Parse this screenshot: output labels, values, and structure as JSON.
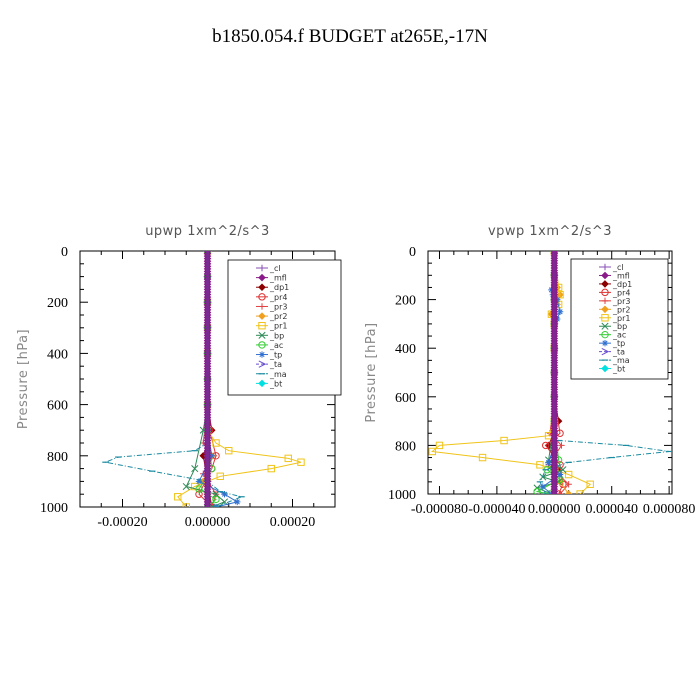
{
  "title": "b1850.054.f  BUDGET at265E,-17N",
  "chart_data": [
    {
      "type": "line",
      "title": "upwp   1xm^2/s^3",
      "ylabel": "Pressure [hPa]",
      "xlim": [
        -0.0003,
        0.0003
      ],
      "ylim": [
        1000,
        0
      ],
      "xticks": [
        -0.0002,
        0.0,
        0.0002
      ],
      "xtick_labels": [
        "-0.00020",
        "0.00000",
        "0.00020"
      ],
      "yticks": [
        0,
        200,
        400,
        600,
        800,
        1000
      ],
      "ytick_labels": [
        "0",
        "200",
        "400",
        "600",
        "800",
        "1000"
      ],
      "legend": "top-right",
      "series": [
        {
          "name": "_cl",
          "color": "#8a4fb5",
          "marker": "plus",
          "x": [
            0,
            0,
            0,
            0,
            0,
            0,
            0,
            0,
            0,
            0,
            0
          ],
          "y": [
            0,
            100,
            200,
            300,
            400,
            500,
            600,
            700,
            800,
            900,
            1000
          ]
        },
        {
          "name": "_mfl",
          "color": "#8b1a8b",
          "marker": "diamond",
          "x": [
            0,
            0,
            0,
            0,
            0,
            0,
            0,
            0,
            0,
            0,
            0
          ],
          "y": [
            0,
            100,
            200,
            300,
            400,
            500,
            600,
            700,
            800,
            900,
            1000
          ]
        },
        {
          "name": "_dp1",
          "color": "#8b0000",
          "marker": "diamond",
          "x": [
            0,
            0,
            0,
            0,
            0,
            0,
            0,
            1e-05,
            -1e-05,
            0,
            1e-05
          ],
          "y": [
            0,
            100,
            200,
            300,
            400,
            500,
            600,
            700,
            800,
            900,
            1000
          ]
        },
        {
          "name": "_pr4",
          "color": "#e03030",
          "marker": "circle",
          "x": [
            0,
            0,
            0,
            0,
            0,
            0,
            0,
            5e-06,
            2e-05,
            1e-05,
            -2e-05,
            1e-05
          ],
          "y": [
            0,
            100,
            200,
            300,
            400,
            500,
            600,
            700,
            800,
            850,
            950,
            1000
          ]
        },
        {
          "name": "_pr3",
          "color": "#e04040",
          "marker": "plus",
          "x": [
            0,
            0,
            0,
            0,
            0,
            0,
            0,
            -1e-05,
            1.5e-05,
            -1e-05,
            2e-05,
            1e-05
          ],
          "y": [
            0,
            100,
            200,
            300,
            400,
            500,
            600,
            750,
            800,
            870,
            950,
            1000
          ]
        },
        {
          "name": "_pr2",
          "color": "#f0a020",
          "marker": "diamond",
          "x": [
            0,
            0,
            0,
            0,
            0,
            0,
            0,
            0,
            1e-05,
            -1e-05,
            0,
            0
          ],
          "y": [
            0,
            100,
            200,
            300,
            400,
            500,
            600,
            700,
            800,
            900,
            950,
            1000
          ]
        },
        {
          "name": "_pr1",
          "color": "#f0c419",
          "marker": "square",
          "x": [
            0,
            0,
            0,
            0,
            0,
            0,
            2e-05,
            5e-05,
            0.00019,
            0.00022,
            0.00015,
            3e-05,
            -3e-05,
            -7e-05,
            -5e-05
          ],
          "y": [
            0,
            200,
            300,
            400,
            600,
            700,
            750,
            780,
            810,
            825,
            850,
            880,
            920,
            960,
            1000
          ]
        },
        {
          "name": "_bp",
          "color": "#2e8b57",
          "marker": "cross",
          "x": [
            0,
            0,
            0,
            0,
            0,
            0,
            0,
            -1e-05,
            -3e-05,
            -5e-05,
            2e-05,
            4e-05,
            1e-05
          ],
          "y": [
            0,
            100,
            200,
            300,
            400,
            500,
            600,
            700,
            850,
            920,
            950,
            980,
            1000
          ]
        },
        {
          "name": "_ac",
          "color": "#32cd32",
          "marker": "circle",
          "x": [
            0,
            0,
            0,
            0,
            0,
            0,
            0,
            0,
            1e-05,
            -2e-05,
            2e-05,
            0
          ],
          "y": [
            0,
            100,
            200,
            300,
            400,
            500,
            600,
            700,
            850,
            930,
            970,
            1000
          ]
        },
        {
          "name": "_tp",
          "color": "#3070d0",
          "marker": "star",
          "x": [
            0,
            0,
            0,
            0,
            0,
            0,
            0,
            0,
            1e-05,
            -2e-05,
            4e-05,
            7e-05,
            2e-05
          ],
          "y": [
            0,
            100,
            200,
            300,
            400,
            500,
            600,
            700,
            800,
            900,
            950,
            980,
            1000
          ]
        },
        {
          "name": "_ta",
          "color": "#6a4fd0",
          "marker": "arrow",
          "x": [
            0,
            0,
            0,
            0,
            0,
            0,
            0,
            0,
            0,
            0,
            0
          ],
          "y": [
            0,
            100,
            200,
            300,
            400,
            500,
            600,
            700,
            800,
            900,
            1000
          ]
        },
        {
          "name": "_ma",
          "color": "#1a8aa0",
          "marker": "dash",
          "x": [
            0,
            0,
            0,
            0,
            0,
            0,
            0,
            -3e-05,
            -0.00021,
            -0.00024,
            -0.00013,
            0,
            3e-05,
            8e-05,
            2e-05
          ],
          "y": [
            0,
            200,
            300,
            400,
            600,
            700,
            750,
            780,
            805,
            825,
            860,
            900,
            940,
            960,
            1000
          ]
        },
        {
          "name": "_bt",
          "color": "#00e0e0",
          "marker": "diamond",
          "x": [
            0,
            0,
            0,
            0,
            0,
            0,
            0,
            0,
            0,
            0,
            0
          ],
          "y": [
            0,
            100,
            200,
            300,
            400,
            500,
            600,
            700,
            800,
            900,
            1000
          ]
        }
      ]
    },
    {
      "type": "line",
      "title": "vpwp   1xm^2/s^3",
      "ylabel": "Pressure [hPa]",
      "xlim": [
        -8.8e-05,
        8.2e-05
      ],
      "ylim": [
        1000,
        0
      ],
      "xticks": [
        -8e-05,
        -4e-05,
        0.0,
        4e-05,
        8e-05
      ],
      "xtick_labels": [
        "-0.000080",
        "-0.000040",
        "0.000000",
        "0.000040",
        "0.000080"
      ],
      "yticks": [
        0,
        200,
        400,
        600,
        800,
        1000
      ],
      "ytick_labels": [
        "0",
        "200",
        "400",
        "600",
        "800",
        "1000"
      ],
      "legend": "top-right",
      "series": [
        {
          "name": "_cl",
          "color": "#8a4fb5",
          "marker": "plus",
          "x": [
            0,
            0,
            0,
            0,
            0,
            0,
            0,
            0,
            0,
            0,
            0
          ],
          "y": [
            0,
            100,
            200,
            300,
            400,
            500,
            600,
            700,
            800,
            900,
            1000
          ]
        },
        {
          "name": "_mfl",
          "color": "#8b1a8b",
          "marker": "diamond",
          "x": [
            0,
            0,
            0,
            0,
            0,
            0,
            0,
            0,
            0,
            0,
            0
          ],
          "y": [
            0,
            100,
            200,
            300,
            400,
            500,
            600,
            700,
            800,
            900,
            1000
          ]
        },
        {
          "name": "_dp1",
          "color": "#8b0000",
          "marker": "diamond",
          "x": [
            0,
            0,
            0,
            0,
            0,
            0,
            0,
            3e-06,
            -4e-06,
            2e-06,
            0
          ],
          "y": [
            0,
            100,
            200,
            300,
            400,
            500,
            600,
            700,
            800,
            900,
            1000
          ]
        },
        {
          "name": "_pr4",
          "color": "#e03030",
          "marker": "circle",
          "x": [
            0,
            0,
            0,
            0,
            0,
            0,
            0,
            4e-06,
            -6e-06,
            4e-06,
            6e-06,
            3e-06
          ],
          "y": [
            0,
            100,
            200,
            300,
            400,
            500,
            600,
            750,
            800,
            880,
            960,
            1000
          ]
        },
        {
          "name": "_pr3",
          "color": "#e04040",
          "marker": "plus",
          "x": [
            0,
            0,
            0,
            0,
            0,
            0,
            0,
            -3e-06,
            5e-06,
            -4e-06,
            1e-05,
            4e-06
          ],
          "y": [
            0,
            100,
            200,
            300,
            400,
            500,
            600,
            750,
            800,
            880,
            960,
            1000
          ]
        },
        {
          "name": "_pr2",
          "color": "#f0a020",
          "marker": "diamond",
          "x": [
            0,
            2e-06,
            4e-06,
            2e-06,
            -2e-06,
            0,
            0,
            0,
            0,
            0,
            4e-06,
            1e-05
          ],
          "y": [
            0,
            150,
            180,
            220,
            260,
            300,
            400,
            600,
            700,
            800,
            950,
            1000
          ]
        },
        {
          "name": "_pr1",
          "color": "#f0c419",
          "marker": "square",
          "x": [
            0,
            3e-06,
            4e-06,
            3e-06,
            -2e-06,
            0,
            0,
            0,
            -4e-06,
            -3.5e-05,
            -8e-05,
            -8.5e-05,
            -5e-05,
            -1e-05,
            1e-05,
            2.5e-05,
            1.8e-05
          ],
          "y": [
            0,
            150,
            180,
            220,
            260,
            300,
            400,
            700,
            760,
            780,
            800,
            825,
            850,
            880,
            920,
            960,
            1000
          ]
        },
        {
          "name": "_bp",
          "color": "#2e8b57",
          "marker": "cross",
          "x": [
            0,
            0,
            0,
            0,
            0,
            0,
            0,
            0,
            -4e-06,
            6e-06,
            -8e-06,
            3e-06,
            -1.2e-05,
            -2e-06
          ],
          "y": [
            0,
            100,
            200,
            300,
            400,
            500,
            600,
            700,
            860,
            900,
            930,
            950,
            975,
            1000
          ]
        },
        {
          "name": "_ac",
          "color": "#32cd32",
          "marker": "circle",
          "x": [
            0,
            0,
            0,
            0,
            0,
            0,
            0,
            0,
            3e-06,
            -5e-06,
            4e-06,
            -1.2e-05,
            -3e-06
          ],
          "y": [
            0,
            100,
            200,
            300,
            400,
            500,
            600,
            700,
            860,
            900,
            940,
            990,
            1000
          ]
        },
        {
          "name": "_tp",
          "color": "#3070d0",
          "marker": "star",
          "x": [
            0,
            -2e-06,
            -1e-06,
            2e-06,
            4e-06,
            2e-06,
            0,
            0,
            0,
            -4e-06,
            4e-06,
            -8e-06,
            -2e-06
          ],
          "y": [
            0,
            160,
            180,
            200,
            250,
            280,
            300,
            600,
            800,
            870,
            920,
            970,
            1000
          ]
        },
        {
          "name": "_ta",
          "color": "#6a4fd0",
          "marker": "arrow",
          "x": [
            0,
            0,
            0,
            0,
            0,
            0,
            0,
            0,
            0,
            0,
            0
          ],
          "y": [
            0,
            100,
            200,
            300,
            400,
            500,
            600,
            700,
            800,
            900,
            1000
          ]
        },
        {
          "name": "_ma",
          "color": "#1a8aa0",
          "marker": "dash",
          "x": [
            0,
            0,
            0,
            0,
            0,
            0,
            0,
            3e-06,
            5e-05,
            8e-05,
            4e-05,
            1e-05,
            -6e-06,
            -1e-05,
            -6e-06
          ],
          "y": [
            0,
            200,
            300,
            400,
            600,
            700,
            750,
            780,
            800,
            825,
            850,
            870,
            900,
            950,
            1000
          ]
        },
        {
          "name": "_bt",
          "color": "#00e0e0",
          "marker": "diamond",
          "x": [
            0,
            0,
            0,
            0,
            0,
            0,
            0,
            0,
            0,
            0,
            0
          ],
          "y": [
            0,
            100,
            200,
            300,
            400,
            500,
            600,
            700,
            800,
            900,
            1000
          ]
        }
      ]
    }
  ]
}
